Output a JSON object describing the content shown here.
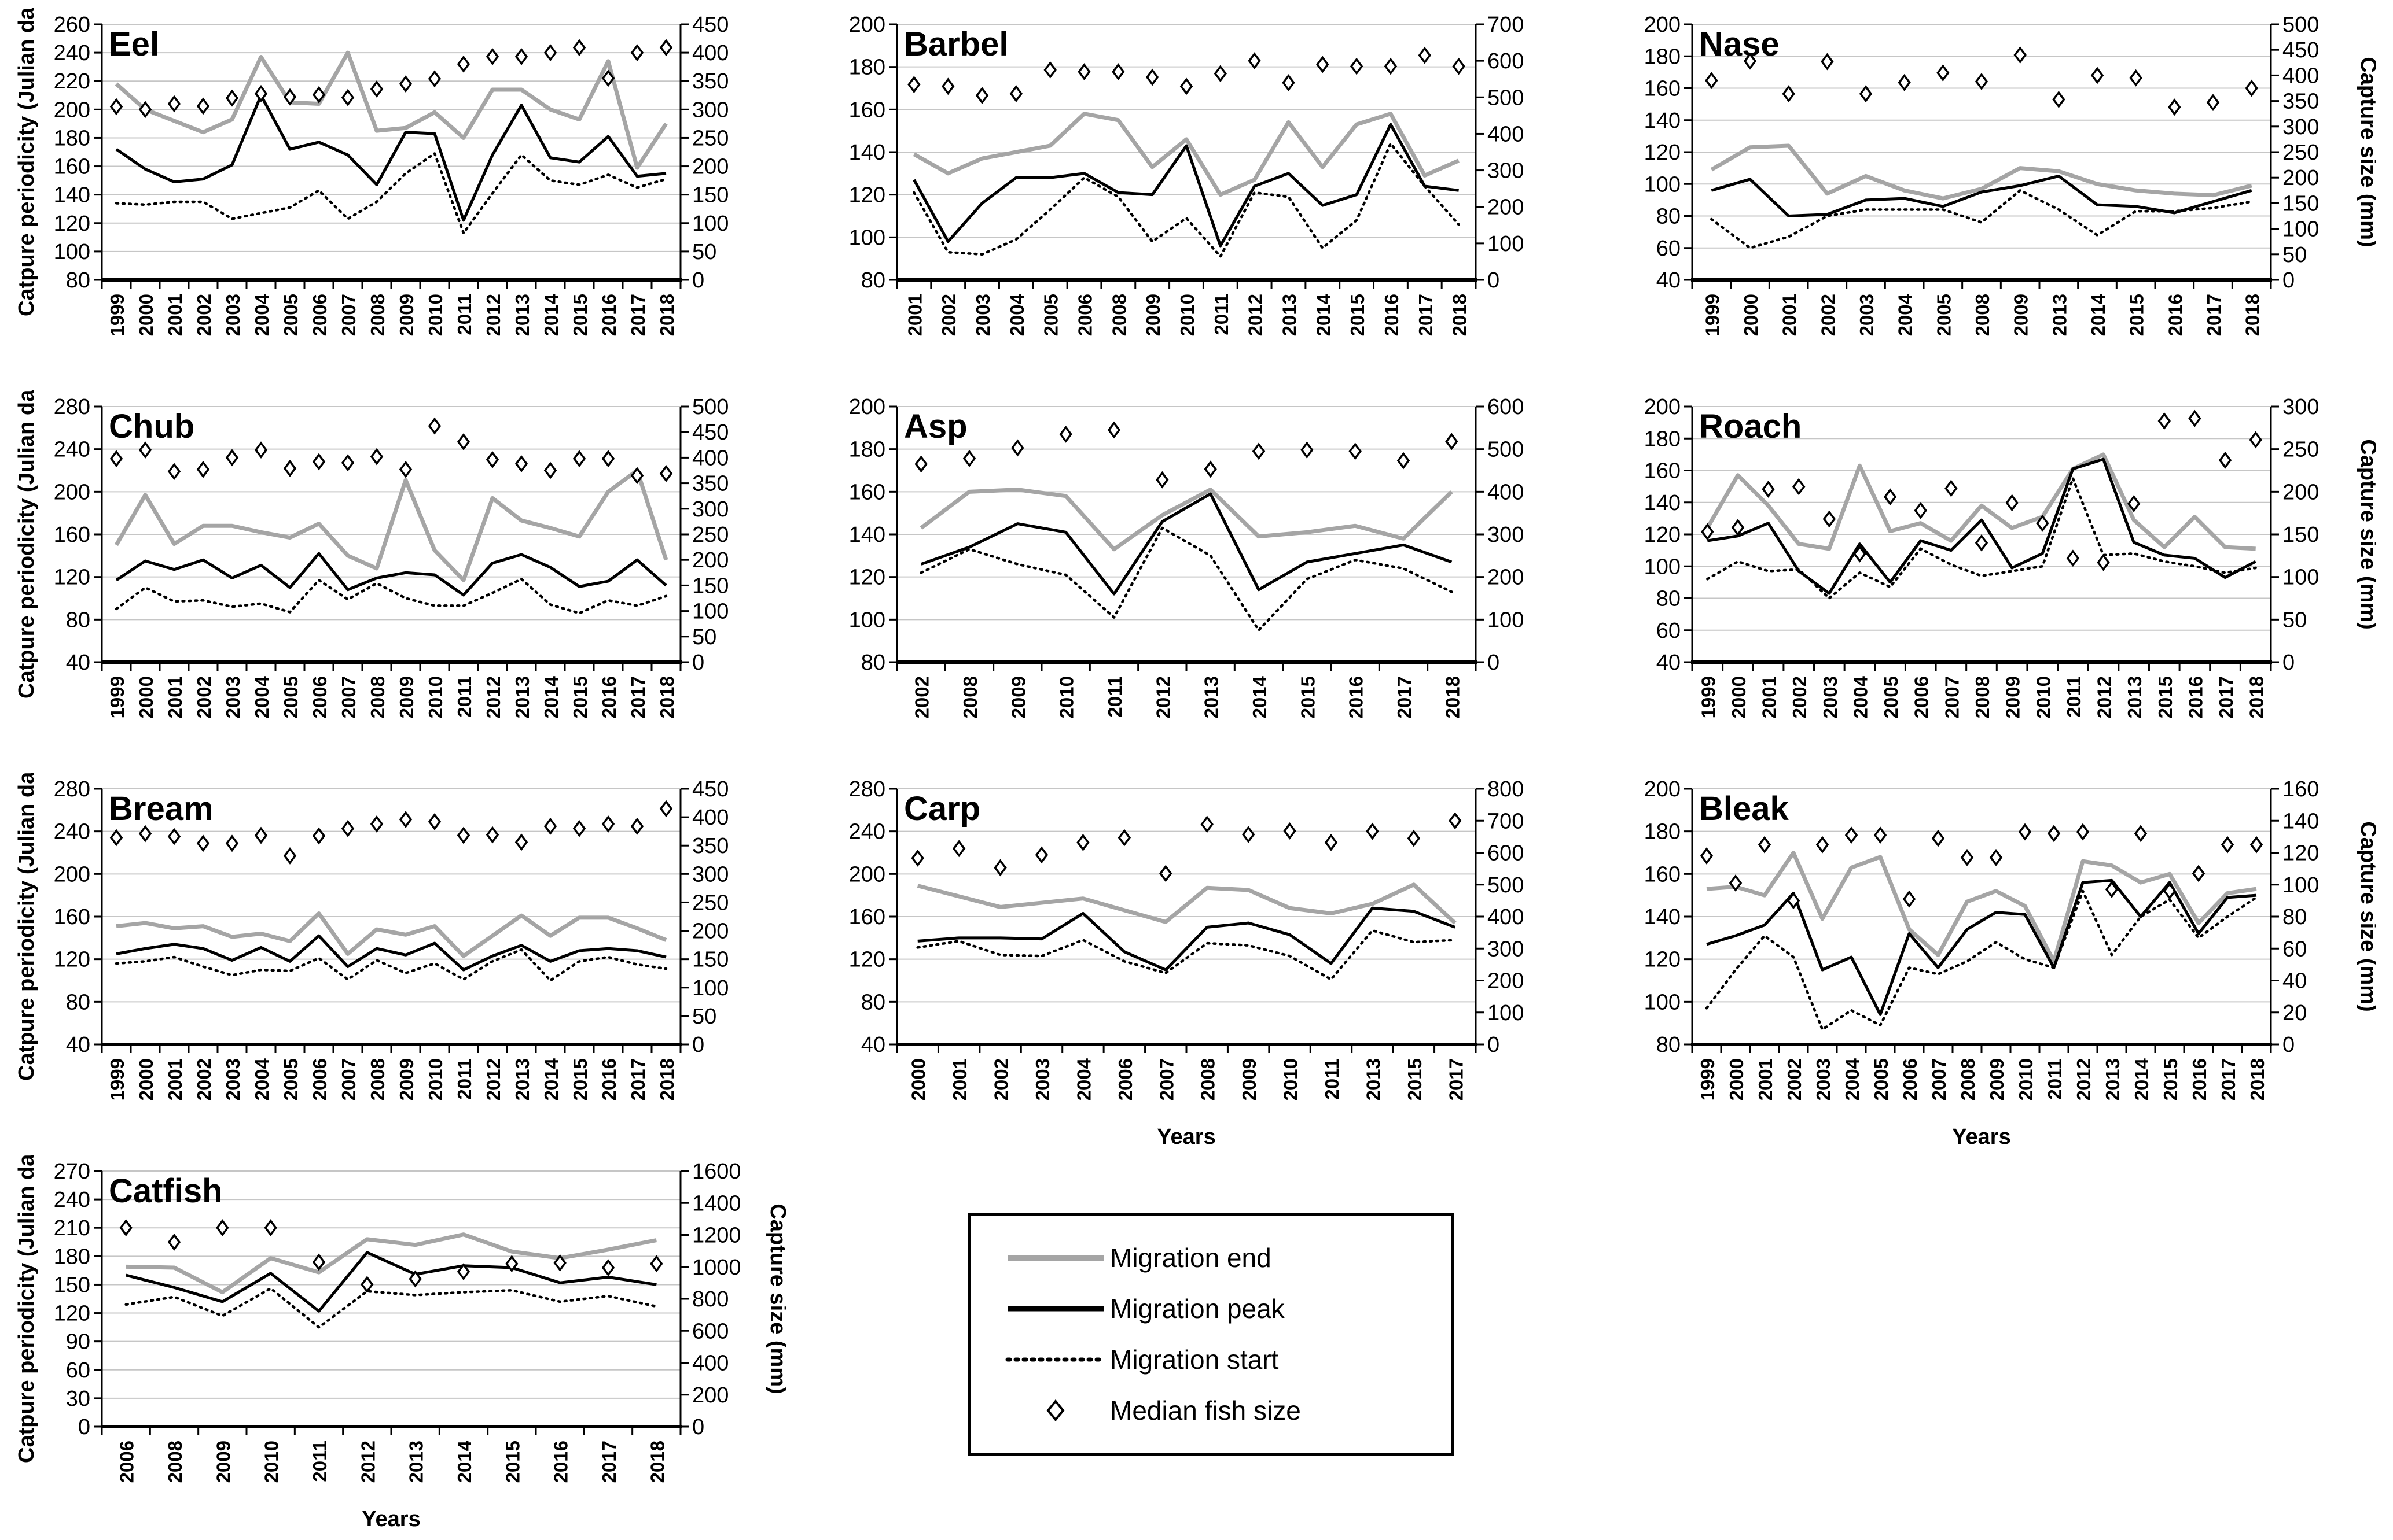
{
  "legend": {
    "items": [
      {
        "label": "Migration end",
        "swatch": "gray-line"
      },
      {
        "label": "Migration peak",
        "swatch": "black-line"
      },
      {
        "label": "Migration start",
        "swatch": "dotted-line"
      },
      {
        "label": "Median fish size",
        "swatch": "open-diamond"
      }
    ]
  },
  "colors": {
    "migration_end": "#a5a5a5",
    "migration_peak": "#000000",
    "migration_start": "#000000",
    "diamond_stroke": "#000000",
    "diamond_fill": "#ffffff",
    "gridline": "#c6c6c6"
  },
  "axis_titles": {
    "left": "Catpure periodicity (Julian day)",
    "right": "Capture size (mm)",
    "x": "Years"
  },
  "chart_data": [
    {
      "type": "line",
      "title": "Eel",
      "ylabel_left": "Catpure periodicity (Julian day)",
      "ylabel_right": null,
      "xlabel": null,
      "left_axis": {
        "min": 80,
        "max": 260,
        "step": 20
      },
      "right_axis": {
        "min": 0,
        "max": 450,
        "step": 50
      },
      "years": [
        1999,
        2000,
        2001,
        2002,
        2003,
        2004,
        2005,
        2006,
        2007,
        2008,
        2009,
        2010,
        2011,
        2012,
        2013,
        2014,
        2015,
        2016,
        2017,
        2018
      ],
      "migration_end": [
        218,
        200,
        192,
        184,
        193,
        237,
        205,
        204,
        240,
        185,
        187,
        198,
        180,
        214,
        214,
        200,
        193,
        234,
        159,
        190
      ],
      "migration_peak": [
        172,
        158,
        149,
        151,
        161,
        210,
        172,
        177,
        168,
        147,
        184,
        183,
        122,
        168,
        203,
        166,
        163,
        181,
        153,
        155
      ],
      "migration_start": [
        134,
        133,
        135,
        135,
        123,
        127,
        131,
        143,
        123,
        135,
        155,
        169,
        113,
        141,
        168,
        150,
        147,
        154,
        145,
        151
      ],
      "median_fish_size": [
        305,
        300,
        310,
        306,
        320,
        328,
        322,
        326,
        321,
        336,
        345,
        354,
        380,
        393,
        393,
        400,
        409,
        355,
        400,
        409
      ]
    },
    {
      "type": "line",
      "title": "Barbel",
      "ylabel_left": null,
      "ylabel_right": null,
      "xlabel": null,
      "left_axis": {
        "min": 80,
        "max": 200,
        "step": 20
      },
      "right_axis": {
        "min": 0,
        "max": 700,
        "step": 100
      },
      "years": [
        2001,
        2002,
        2003,
        2004,
        2005,
        2006,
        2008,
        2009,
        2010,
        2011,
        2012,
        2013,
        2014,
        2015,
        2016,
        2017,
        2018
      ],
      "migration_end": [
        139,
        130,
        137,
        140,
        143,
        158,
        155,
        133,
        146,
        120,
        127,
        154,
        133,
        153,
        158,
        129,
        136
      ],
      "migration_peak": [
        127,
        98,
        116,
        128,
        128,
        130,
        121,
        120,
        143,
        96,
        124,
        130,
        115,
        120,
        153,
        124,
        122
      ],
      "migration_start": [
        121,
        93,
        92,
        99,
        113,
        128,
        119,
        98,
        109,
        91,
        121,
        119,
        95,
        108,
        144,
        124,
        106
      ],
      "median_fish_size": [
        535,
        530,
        505,
        510,
        575,
        570,
        570,
        555,
        530,
        565,
        600,
        540,
        590,
        585,
        585,
        615,
        585
      ]
    },
    {
      "type": "line",
      "title": "Nase",
      "ylabel_left": null,
      "ylabel_right": "Capture size (mm)",
      "xlabel": null,
      "left_axis": {
        "min": 40,
        "max": 200,
        "step": 20
      },
      "right_axis": {
        "min": 0,
        "max": 500,
        "step": 50
      },
      "years": [
        1999,
        2000,
        2001,
        2002,
        2003,
        2004,
        2005,
        2008,
        2009,
        2013,
        2014,
        2015,
        2016,
        2017,
        2018
      ],
      "migration_end": [
        109,
        123,
        124,
        94,
        105,
        96,
        91,
        97,
        110,
        108,
        100,
        96,
        94,
        93,
        99
      ],
      "migration_peak": [
        96,
        103,
        80,
        81,
        90,
        91,
        86,
        95,
        99,
        105,
        87,
        86,
        82,
        89,
        96
      ],
      "migration_start": [
        78,
        60,
        67,
        80,
        84,
        84,
        84,
        76,
        96,
        84,
        68,
        83,
        83,
        85,
        89
      ],
      "median_fish_size": [
        390,
        428,
        364,
        427,
        364,
        386,
        405,
        388,
        440,
        353,
        400,
        395,
        338,
        347,
        375
      ]
    },
    {
      "type": "line",
      "title": "Chub",
      "ylabel_left": "Catpure periodicity (Julian day)",
      "ylabel_right": null,
      "xlabel": null,
      "left_axis": {
        "min": 40,
        "max": 280,
        "step": 40
      },
      "right_axis": {
        "min": 0,
        "max": 500,
        "step": 50
      },
      "years": [
        1999,
        2000,
        2001,
        2002,
        2003,
        2004,
        2005,
        2006,
        2007,
        2008,
        2009,
        2010,
        2011,
        2012,
        2013,
        2014,
        2015,
        2016,
        2017,
        2018
      ],
      "migration_end": [
        150,
        197,
        151,
        168,
        168,
        162,
        157,
        170,
        140,
        128,
        211,
        145,
        117,
        194,
        173,
        166,
        158,
        200,
        220,
        136
      ],
      "migration_peak": [
        117,
        135,
        127,
        136,
        119,
        131,
        110,
        142,
        108,
        119,
        124,
        122,
        103,
        133,
        141,
        129,
        111,
        116,
        136,
        112
      ],
      "migration_start": [
        90,
        110,
        97,
        98,
        92,
        95,
        87,
        117,
        99,
        114,
        100,
        93,
        93,
        105,
        118,
        94,
        86,
        98,
        93,
        102
      ],
      "median_fish_size": [
        398,
        415,
        373,
        377,
        400,
        415,
        379,
        392,
        390,
        402,
        377,
        462,
        431,
        396,
        388,
        375,
        398,
        398,
        365,
        369
      ]
    },
    {
      "type": "line",
      "title": "Asp",
      "ylabel_left": null,
      "ylabel_right": null,
      "xlabel": null,
      "left_axis": {
        "min": 80,
        "max": 200,
        "step": 20
      },
      "right_axis": {
        "min": 0,
        "max": 600,
        "step": 100
      },
      "years": [
        2002,
        2008,
        2009,
        2010,
        2011,
        2012,
        2013,
        2014,
        2015,
        2016,
        2017,
        2018
      ],
      "migration_end": [
        143,
        160,
        161,
        158,
        133,
        149,
        161,
        139,
        141,
        144,
        138,
        160
      ],
      "migration_peak": [
        126,
        134,
        145,
        141,
        112,
        146,
        159,
        114,
        127,
        131,
        135,
        127
      ],
      "migration_start": [
        122,
        133,
        126,
        121,
        101,
        143,
        130,
        95,
        119,
        128,
        124,
        113
      ],
      "median_fish_size": [
        465,
        478,
        503,
        535,
        545,
        428,
        453,
        495,
        498,
        495,
        473,
        518
      ]
    },
    {
      "type": "line",
      "title": "Roach",
      "ylabel_left": null,
      "ylabel_right": "Capture size (mm)",
      "xlabel": null,
      "left_axis": {
        "min": 40,
        "max": 200,
        "step": 20
      },
      "right_axis": {
        "min": 0,
        "max": 300,
        "step": 50
      },
      "years": [
        1999,
        2000,
        2001,
        2002,
        2003,
        2004,
        2005,
        2006,
        2007,
        2008,
        2009,
        2010,
        2011,
        2012,
        2013,
        2015,
        2016,
        2017,
        2018
      ],
      "migration_end": [
        124,
        157,
        138,
        114,
        111,
        163,
        122,
        127,
        116,
        138,
        124,
        131,
        161,
        170,
        129,
        112,
        131,
        112,
        111
      ],
      "migration_peak": [
        116,
        119,
        127,
        97,
        83,
        114,
        90,
        116,
        110,
        129,
        99,
        108,
        161,
        167,
        115,
        107,
        105,
        93,
        103
      ],
      "migration_start": [
        92,
        103,
        97,
        98,
        80,
        96,
        87,
        111,
        101,
        94,
        97,
        100,
        155,
        107,
        108,
        103,
        100,
        96,
        99
      ],
      "median_fish_size": [
        153,
        158,
        203,
        206,
        168,
        127,
        194,
        178,
        204,
        140,
        187,
        163,
        122,
        117,
        186,
        283,
        286,
        237,
        261
      ]
    },
    {
      "type": "line",
      "title": "Bream",
      "ylabel_left": "Catpure periodicity (Julian day)",
      "ylabel_right": null,
      "xlabel": null,
      "left_axis": {
        "min": 40,
        "max": 280,
        "step": 40
      },
      "right_axis": {
        "min": 0,
        "max": 450,
        "step": 50
      },
      "years": [
        1999,
        2000,
        2001,
        2002,
        2003,
        2004,
        2005,
        2006,
        2007,
        2008,
        2009,
        2010,
        2011,
        2012,
        2013,
        2014,
        2015,
        2016,
        2017,
        2018
      ],
      "migration_end": [
        151,
        154,
        149,
        151,
        141,
        144,
        137,
        163,
        125,
        148,
        143,
        151,
        123,
        142,
        161,
        142,
        159,
        159,
        149,
        138
      ],
      "migration_peak": [
        125,
        130,
        134,
        130,
        119,
        131,
        118,
        142,
        113,
        130,
        124,
        135,
        110,
        123,
        133,
        118,
        128,
        130,
        128,
        122
      ],
      "migration_start": [
        116,
        118,
        122,
        113,
        105,
        110,
        109,
        121,
        101,
        119,
        107,
        116,
        101,
        118,
        129,
        100,
        118,
        122,
        115,
        111
      ],
      "median_fish_size": [
        364,
        371,
        366,
        354,
        354,
        368,
        332,
        367,
        380,
        388,
        396,
        392,
        368,
        369,
        356,
        384,
        380,
        388,
        384,
        415
      ]
    },
    {
      "type": "line",
      "title": "Carp",
      "ylabel_left": null,
      "ylabel_right": null,
      "xlabel": "Years",
      "left_axis": {
        "min": 40,
        "max": 280,
        "step": 40
      },
      "right_axis": {
        "min": 0,
        "max": 800,
        "step": 100
      },
      "years": [
        2000,
        2001,
        2002,
        2003,
        2004,
        2006,
        2007,
        2008,
        2009,
        2010,
        2011,
        2013,
        2015,
        2017
      ],
      "migration_end": [
        189,
        179,
        169,
        173,
        177,
        166,
        155,
        187,
        185,
        168,
        163,
        172,
        190,
        154
      ],
      "migration_peak": [
        137,
        140,
        140,
        139,
        163,
        127,
        110,
        150,
        154,
        143,
        116,
        168,
        165,
        150
      ],
      "migration_start": [
        131,
        137,
        124,
        123,
        138,
        118,
        107,
        135,
        133,
        123,
        101,
        147,
        136,
        138
      ],
      "median_fish_size": [
        583,
        613,
        553,
        593,
        632,
        647,
        535,
        689,
        657,
        668,
        632,
        667,
        645,
        700
      ]
    },
    {
      "type": "line",
      "title": "Bleak",
      "ylabel_left": null,
      "ylabel_right": "Capture size (mm)",
      "xlabel": "Years",
      "left_axis": {
        "min": 80,
        "max": 200,
        "step": 20
      },
      "right_axis": {
        "min": 0,
        "max": 160,
        "step": 20
      },
      "years": [
        1999,
        2000,
        2001,
        2002,
        2003,
        2004,
        2005,
        2006,
        2007,
        2008,
        2009,
        2010,
        2011,
        2012,
        2013,
        2014,
        2015,
        2016,
        2017,
        2018
      ],
      "migration_end": [
        153,
        154,
        150,
        170,
        139,
        163,
        168,
        134,
        122,
        147,
        152,
        145,
        119,
        166,
        164,
        156,
        160,
        137,
        151,
        153
      ],
      "migration_peak": [
        127,
        131,
        136,
        151,
        115,
        121,
        94,
        132,
        116,
        134,
        142,
        141,
        116,
        156,
        157,
        140,
        156,
        132,
        149,
        150
      ],
      "migration_start": [
        97,
        115,
        131,
        121,
        87,
        96,
        89,
        116,
        113,
        119,
        128,
        120,
        116,
        152,
        122,
        140,
        148,
        130,
        140,
        149
      ],
      "median_fish_size": [
        118,
        101,
        125,
        90,
        125,
        131,
        131,
        91,
        129,
        117,
        117,
        133,
        132,
        133,
        97,
        132,
        96,
        107,
        125,
        125
      ]
    },
    {
      "type": "line",
      "title": "Catfish",
      "ylabel_left": "Catpure periodicity (Julian day)",
      "ylabel_right": "Capture size (mm)",
      "xlabel": "Years",
      "left_axis": {
        "min": 0,
        "max": 270,
        "step": 30
      },
      "right_axis": {
        "min": 0,
        "max": 1600,
        "step": 200
      },
      "years": [
        2006,
        2008,
        2009,
        2010,
        2011,
        2012,
        2013,
        2014,
        2015,
        2016,
        2017,
        2018
      ],
      "migration_end": [
        169,
        168,
        142,
        178,
        163,
        198,
        192,
        203,
        185,
        178,
        187,
        197
      ],
      "migration_peak": [
        160,
        147,
        132,
        162,
        122,
        184,
        161,
        170,
        168,
        152,
        158,
        150
      ],
      "migration_start": [
        129,
        137,
        117,
        146,
        105,
        143,
        139,
        142,
        144,
        132,
        138,
        127
      ],
      "median_fish_size": [
        1245,
        1155,
        1245,
        1245,
        1030,
        890,
        925,
        970,
        1020,
        1025,
        995,
        1020
      ]
    }
  ]
}
